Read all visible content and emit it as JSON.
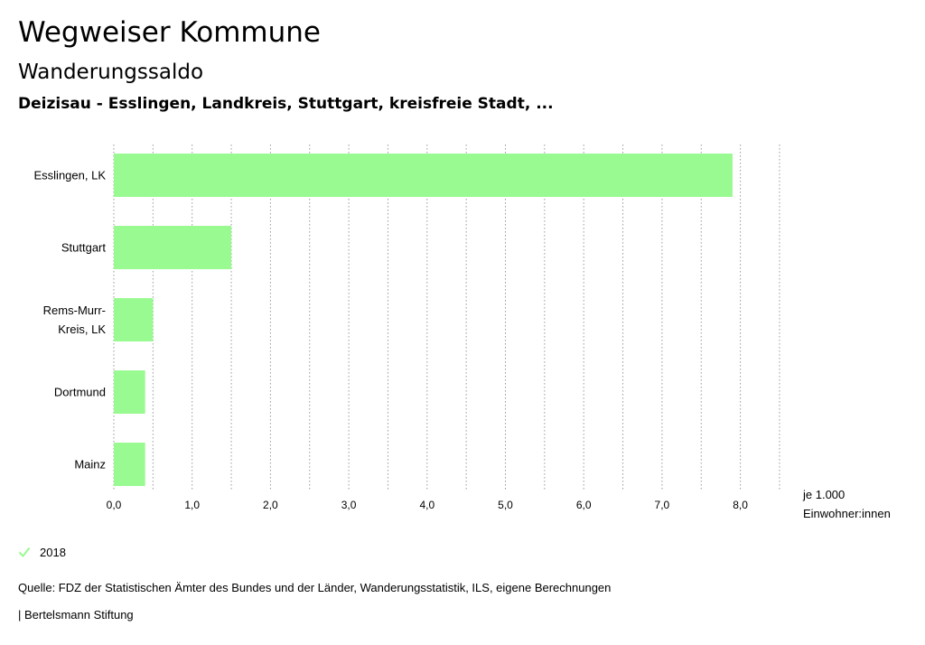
{
  "header": {
    "title": "Wegweiser Kommune",
    "subtitle": "Wanderungssaldo",
    "region": "Deizisau - Esslingen, Landkreis, Stuttgart, kreisfreie Stadt, ..."
  },
  "chart_data": {
    "type": "bar",
    "orientation": "horizontal",
    "categories": [
      [
        "Esslingen, LK"
      ],
      [
        "Stuttgart"
      ],
      [
        "Rems-Murr-",
        "Kreis, LK"
      ],
      [
        "Dortmund"
      ],
      [
        "Mainz"
      ]
    ],
    "series": [
      {
        "name": "2018",
        "values": [
          7.9,
          1.5,
          0.5,
          0.4,
          0.4
        ]
      }
    ],
    "xlim": [
      0,
      8.5
    ],
    "ticks": [
      0,
      1,
      2,
      3,
      4,
      5,
      6,
      7,
      8
    ],
    "tick_labels": [
      "0,0",
      "1,0",
      "2,0",
      "3,0",
      "4,0",
      "5,0",
      "6,0",
      "7,0",
      "8,0"
    ],
    "unit_label": [
      "je 1.000",
      "Einwohner:innen"
    ],
    "grid": "vertical-dotted",
    "bar_color": "#9afa92",
    "grid_color": "#9a9a9a",
    "legend_placement": "bottom-left"
  },
  "legend": {
    "label": "2018",
    "icon": "check-icon",
    "color": "#9afa92"
  },
  "footer": {
    "source": "Quelle: FDZ der Statistischen Ämter des Bundes und der Länder, Wanderungsstatistik, ILS, eigene Berechnungen",
    "brand": "| Bertelsmann Stiftung"
  }
}
